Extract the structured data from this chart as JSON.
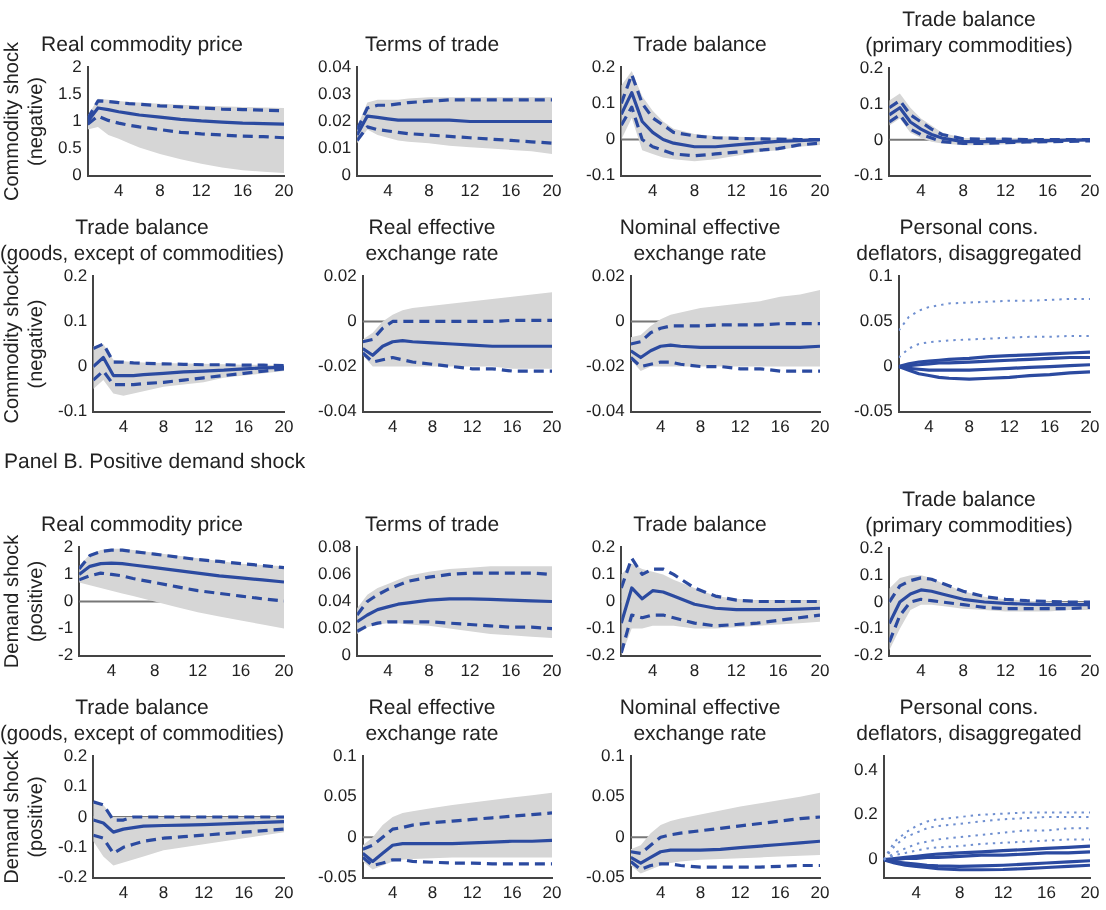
{
  "chart_data": [
    {
      "type": "line",
      "title": "Real commodity price",
      "ylabel": "Commodity shock\n(negative)",
      "x": [
        1,
        2,
        3,
        4,
        5,
        6,
        8,
        10,
        12,
        14,
        16,
        18,
        20
      ],
      "xlim": [
        1,
        20
      ],
      "xticks": [
        4,
        8,
        12,
        16,
        20
      ],
      "ylim": [
        0,
        2
      ],
      "yticks": [
        0,
        0.5,
        1,
        1.5,
        2
      ],
      "series": [
        {
          "color": "#2b4aa0",
          "values": [
            1.0,
            1.25,
            1.22,
            1.18,
            1.15,
            1.12,
            1.08,
            1.04,
            1.01,
            0.99,
            0.97,
            0.96,
            0.95
          ],
          "lower": [
            0.85,
            0.9,
            0.75,
            0.68,
            0.6,
            0.52,
            0.4,
            0.3,
            0.22,
            0.15,
            0.1,
            0.07,
            0.05
          ],
          "upper": [
            1.1,
            1.42,
            1.4,
            1.38,
            1.36,
            1.35,
            1.33,
            1.31,
            1.29,
            1.28,
            1.27,
            1.26,
            1.25
          ]
        },
        {
          "color": "#2b4aa0",
          "line_style": "dashed",
          "values": [
            1.05,
            1.38,
            1.37,
            1.35,
            1.33,
            1.32,
            1.29,
            1.27,
            1.25,
            1.23,
            1.22,
            1.21,
            1.2
          ]
        },
        {
          "color": "#2b4aa0",
          "line_style": "dashed",
          "values": [
            0.95,
            1.1,
            1.02,
            0.97,
            0.93,
            0.9,
            0.85,
            0.8,
            0.77,
            0.75,
            0.73,
            0.72,
            0.7
          ]
        }
      ]
    },
    {
      "type": "line",
      "title": "Terms of trade",
      "x": [
        1,
        2,
        3,
        4,
        5,
        6,
        8,
        10,
        12,
        14,
        16,
        18,
        20
      ],
      "xlim": [
        1,
        20
      ],
      "xticks": [
        4,
        8,
        12,
        16,
        20
      ],
      "ylim": [
        0,
        0.04
      ],
      "yticks": [
        0,
        0.01,
        0.02,
        0.03,
        0.04
      ],
      "series": [
        {
          "color": "#2b4aa0",
          "values": [
            0.015,
            0.022,
            0.0215,
            0.021,
            0.0205,
            0.0205,
            0.0205,
            0.0205,
            0.02,
            0.02,
            0.02,
            0.02,
            0.02
          ],
          "lower": [
            0.012,
            0.017,
            0.015,
            0.014,
            0.013,
            0.0125,
            0.012,
            0.011,
            0.0105,
            0.01,
            0.0095,
            0.009,
            0.008
          ],
          "upper": [
            0.018,
            0.027,
            0.028,
            0.028,
            0.028,
            0.0285,
            0.029,
            0.029,
            0.029,
            0.029,
            0.029,
            0.029,
            0.029
          ]
        },
        {
          "color": "#2b4aa0",
          "line_style": "dashed",
          "values": [
            0.017,
            0.025,
            0.026,
            0.026,
            0.0265,
            0.027,
            0.0275,
            0.028,
            0.028,
            0.028,
            0.028,
            0.028,
            0.028
          ]
        },
        {
          "color": "#2b4aa0",
          "line_style": "dashed",
          "values": [
            0.013,
            0.018,
            0.017,
            0.0165,
            0.016,
            0.0155,
            0.015,
            0.0145,
            0.014,
            0.0135,
            0.013,
            0.0125,
            0.012
          ]
        }
      ]
    },
    {
      "type": "line",
      "title": "Trade balance",
      "x": [
        1,
        2,
        3,
        4,
        5,
        6,
        8,
        10,
        12,
        14,
        16,
        18,
        20
      ],
      "xlim": [
        1,
        20
      ],
      "xticks": [
        4,
        8,
        12,
        16,
        20
      ],
      "ylim": [
        -0.1,
        0.2
      ],
      "yticks": [
        -0.1,
        0,
        0.1,
        0.2
      ],
      "ref_lines": [
        {
          "axis": "y",
          "value": 0
        }
      ],
      "series": [
        {
          "color": "#2b4aa0",
          "values": [
            0.07,
            0.13,
            0.05,
            0.02,
            0.0,
            -0.01,
            -0.02,
            -0.02,
            -0.015,
            -0.01,
            -0.005,
            -0.003,
            0
          ],
          "lower": [
            0.0,
            0.06,
            -0.03,
            -0.04,
            -0.05,
            -0.055,
            -0.06,
            -0.055,
            -0.045,
            -0.035,
            -0.03,
            -0.02,
            -0.015
          ],
          "upper": [
            0.15,
            0.19,
            0.12,
            0.08,
            0.05,
            0.03,
            0.015,
            0.01,
            0.008,
            0.006,
            0.005,
            0.004,
            0.003
          ]
        },
        {
          "color": "#2b4aa0",
          "line_style": "dashed",
          "values": [
            0.1,
            0.18,
            0.1,
            0.06,
            0.04,
            0.02,
            0.01,
            0.005,
            0.003,
            0.002,
            0.001,
            0,
            0
          ]
        },
        {
          "color": "#2b4aa0",
          "line_style": "dashed",
          "values": [
            0.04,
            0.09,
            0.0,
            -0.02,
            -0.03,
            -0.04,
            -0.045,
            -0.04,
            -0.035,
            -0.03,
            -0.025,
            -0.015,
            -0.01
          ]
        }
      ]
    },
    {
      "type": "line",
      "title": "Trade balance\n(primary commodities)",
      "x": [
        1,
        2,
        3,
        4,
        5,
        6,
        8,
        10,
        12,
        14,
        16,
        18,
        20
      ],
      "xlim": [
        1,
        20
      ],
      "xticks": [
        4,
        8,
        12,
        16,
        20
      ],
      "ylim": [
        -0.1,
        0.2
      ],
      "yticks": [
        -0.1,
        0,
        0.1,
        0.2
      ],
      "ref_lines": [
        {
          "axis": "y",
          "value": 0
        }
      ],
      "series": [
        {
          "color": "#2b4aa0",
          "values": [
            0.07,
            0.09,
            0.05,
            0.03,
            0.015,
            0.005,
            -0.005,
            -0.005,
            -0.004,
            -0.003,
            -0.002,
            -0.001,
            0
          ],
          "lower": [
            0.04,
            0.06,
            0.02,
            0.005,
            -0.005,
            -0.01,
            -0.015,
            -0.015,
            -0.012,
            -0.01,
            -0.008,
            -0.006,
            -0.005
          ],
          "upper": [
            0.11,
            0.13,
            0.09,
            0.06,
            0.04,
            0.02,
            0.005,
            0.004,
            0.003,
            0.003,
            0.002,
            0.002,
            0.002
          ]
        },
        {
          "color": "#2b4aa0",
          "line_style": "dashed",
          "values": [
            0.09,
            0.11,
            0.07,
            0.05,
            0.03,
            0.015,
            0.003,
            0.002,
            0.002,
            0.001,
            0.001,
            0.001,
            0.001
          ]
        },
        {
          "color": "#2b4aa0",
          "line_style": "dashed",
          "values": [
            0.05,
            0.07,
            0.03,
            0.015,
            0.005,
            -0.005,
            -0.01,
            -0.01,
            -0.008,
            -0.006,
            -0.005,
            -0.004,
            -0.003
          ]
        }
      ]
    },
    {
      "type": "line",
      "title": "Trade balance\n(goods, except of commodities)",
      "ylabel": "Commodity shock\n(negative)",
      "x": [
        1,
        2,
        3,
        4,
        5,
        6,
        8,
        10,
        12,
        14,
        16,
        18,
        20
      ],
      "xlim": [
        1,
        20
      ],
      "xticks": [
        4,
        8,
        12,
        16,
        20
      ],
      "ylim": [
        -0.1,
        0.2
      ],
      "yticks": [
        -0.1,
        0,
        0.1,
        0.2
      ],
      "ref_lines": [
        {
          "axis": "y",
          "value": 0
        }
      ],
      "series": [
        {
          "color": "#2b4aa0",
          "values": [
            0.0,
            0.02,
            -0.02,
            -0.02,
            -0.02,
            -0.018,
            -0.015,
            -0.012,
            -0.01,
            -0.008,
            -0.005,
            -0.003,
            -0.002
          ],
          "lower": [
            -0.05,
            -0.03,
            -0.06,
            -0.065,
            -0.06,
            -0.055,
            -0.045,
            -0.04,
            -0.035,
            -0.025,
            -0.02,
            -0.015,
            -0.01
          ],
          "upper": [
            0.045,
            0.05,
            0.015,
            0.012,
            0.01,
            0.009,
            0.008,
            0.007,
            0.006,
            0.005,
            0.004,
            0.004,
            0.003
          ]
        },
        {
          "color": "#2b4aa0",
          "line_style": "dashed",
          "values": [
            0.04,
            0.05,
            0.01,
            0.01,
            0.008,
            0.007,
            0.006,
            0.005,
            0.004,
            0.004,
            0.003,
            0.003,
            0.002
          ]
        },
        {
          "color": "#2b4aa0",
          "line_style": "dashed",
          "values": [
            -0.03,
            -0.01,
            -0.04,
            -0.04,
            -0.04,
            -0.038,
            -0.035,
            -0.03,
            -0.025,
            -0.02,
            -0.015,
            -0.01,
            -0.005
          ]
        }
      ]
    },
    {
      "type": "line",
      "title": "Real effective\nexchange rate",
      "x": [
        1,
        2,
        3,
        4,
        5,
        6,
        8,
        10,
        12,
        14,
        16,
        18,
        20
      ],
      "xlim": [
        1,
        20
      ],
      "xticks": [
        4,
        8,
        12,
        16,
        20
      ],
      "ylim": [
        -0.04,
        0.02
      ],
      "yticks": [
        -0.04,
        -0.02,
        0,
        0.02
      ],
      "ref_lines": [
        {
          "axis": "y",
          "value": 0
        }
      ],
      "series": [
        {
          "color": "#2b4aa0",
          "values": [
            -0.012,
            -0.015,
            -0.011,
            -0.009,
            -0.0085,
            -0.009,
            -0.0095,
            -0.01,
            -0.0105,
            -0.011,
            -0.011,
            -0.011,
            -0.011
          ],
          "lower": [
            -0.015,
            -0.02,
            -0.02,
            -0.02,
            -0.02,
            -0.02,
            -0.02,
            -0.02,
            -0.02,
            -0.02,
            -0.021,
            -0.021,
            -0.021
          ],
          "upper": [
            -0.008,
            -0.005,
            0.0,
            0.003,
            0.005,
            0.006,
            0.007,
            0.008,
            0.009,
            0.01,
            0.011,
            0.012,
            0.013
          ]
        },
        {
          "color": "#2b4aa0",
          "line_style": "dashed",
          "values": [
            -0.009,
            -0.008,
            -0.003,
            0.0,
            0.0,
            0.0,
            0.0,
            0.0,
            0.0,
            0.0,
            0.0005,
            0.0005,
            0.0005
          ]
        },
        {
          "color": "#2b4aa0",
          "line_style": "dashed",
          "values": [
            -0.014,
            -0.018,
            -0.017,
            -0.016,
            -0.017,
            -0.018,
            -0.019,
            -0.02,
            -0.021,
            -0.021,
            -0.022,
            -0.022,
            -0.022
          ]
        }
      ]
    },
    {
      "type": "line",
      "title": "Nominal effective\nexchange rate",
      "x": [
        1,
        2,
        3,
        4,
        5,
        6,
        8,
        10,
        12,
        14,
        16,
        18,
        20
      ],
      "xlim": [
        1,
        20
      ],
      "xticks": [
        4,
        8,
        12,
        16,
        20
      ],
      "ylim": [
        -0.04,
        0.02
      ],
      "yticks": [
        -0.04,
        -0.02,
        0,
        0.02
      ],
      "ref_lines": [
        {
          "axis": "y",
          "value": 0
        }
      ],
      "series": [
        {
          "color": "#2b4aa0",
          "values": [
            -0.013,
            -0.016,
            -0.013,
            -0.011,
            -0.0105,
            -0.011,
            -0.0115,
            -0.0115,
            -0.0115,
            -0.0115,
            -0.0115,
            -0.0115,
            -0.011
          ],
          "lower": [
            -0.017,
            -0.022,
            -0.02,
            -0.02,
            -0.02,
            -0.02,
            -0.02,
            -0.02,
            -0.02,
            -0.02,
            -0.02,
            -0.02,
            -0.02
          ],
          "upper": [
            -0.007,
            -0.006,
            -0.002,
            0.001,
            0.003,
            0.004,
            0.006,
            0.007,
            0.008,
            0.009,
            0.011,
            0.012,
            0.014
          ]
        },
        {
          "color": "#2b4aa0",
          "line_style": "dashed",
          "values": [
            -0.01,
            -0.009,
            -0.005,
            -0.003,
            -0.002,
            -0.002,
            -0.002,
            -0.0015,
            -0.0015,
            -0.0015,
            -0.001,
            -0.001,
            -0.001
          ]
        },
        {
          "color": "#2b4aa0",
          "line_style": "dashed",
          "values": [
            -0.016,
            -0.02,
            -0.019,
            -0.018,
            -0.018,
            -0.019,
            -0.02,
            -0.02,
            -0.021,
            -0.021,
            -0.022,
            -0.022,
            -0.022
          ]
        }
      ]
    },
    {
      "type": "line",
      "title": "Personal cons.\ndeflators, disaggregated",
      "x": [
        1,
        2,
        3,
        4,
        5,
        6,
        8,
        10,
        12,
        14,
        16,
        18,
        20
      ],
      "xlim": [
        1,
        20
      ],
      "xticks": [
        4,
        8,
        12,
        16,
        20
      ],
      "ylim": [
        -0.05,
        0.1
      ],
      "yticks": [
        -0.05,
        0,
        0.05,
        0.1
      ],
      "series": [
        {
          "color": "#6f8fd0",
          "line_style": "dotted",
          "values": [
            0.04,
            0.055,
            0.062,
            0.066,
            0.068,
            0.07,
            0.071,
            0.072,
            0.073,
            0.073,
            0.074,
            0.075,
            0.075
          ]
        },
        {
          "color": "#6f8fd0",
          "line_style": "dotted",
          "values": [
            0.01,
            0.02,
            0.025,
            0.027,
            0.028,
            0.029,
            0.03,
            0.031,
            0.032,
            0.033,
            0.033,
            0.034,
            0.034
          ]
        },
        {
          "color": "#2b4aa0",
          "values": [
            0,
            0.003,
            0.005,
            0.006,
            0.007,
            0.008,
            0.009,
            0.011,
            0.012,
            0.013,
            0.014,
            0.015,
            0.016
          ]
        },
        {
          "color": "#2b4aa0",
          "values": [
            0,
            0.001,
            0.002,
            0.003,
            0.004,
            0.004,
            0.005,
            0.006,
            0.007,
            0.008,
            0.009,
            0.01,
            0.01
          ]
        },
        {
          "color": "#2b4aa0",
          "values": [
            0,
            -0.002,
            -0.003,
            -0.004,
            -0.004,
            -0.004,
            -0.004,
            -0.003,
            -0.002,
            -0.001,
            0,
            0.001,
            0.002
          ]
        },
        {
          "color": "#2b4aa0",
          "values": [
            0,
            -0.004,
            -0.008,
            -0.01,
            -0.012,
            -0.013,
            -0.014,
            -0.013,
            -0.012,
            -0.01,
            -0.009,
            -0.007,
            -0.006
          ]
        }
      ]
    },
    {
      "type": "line",
      "title": "Real commodity price",
      "ylabel": "Demand shock\n(positive)",
      "annotations": [
        "Panel B. Positive demand shock"
      ],
      "x": [
        1,
        2,
        3,
        4,
        5,
        6,
        8,
        10,
        12,
        14,
        16,
        18,
        20
      ],
      "xlim": [
        1,
        20
      ],
      "xticks": [
        4,
        8,
        12,
        16,
        20
      ],
      "ylim": [
        -2,
        2
      ],
      "yticks": [
        -2,
        -1,
        0,
        1,
        2
      ],
      "ref_lines": [
        {
          "axis": "y",
          "value": 0
        }
      ],
      "series": [
        {
          "color": "#2b4aa0",
          "values": [
            1.0,
            1.3,
            1.4,
            1.42,
            1.4,
            1.35,
            1.25,
            1.15,
            1.05,
            0.95,
            0.87,
            0.8,
            0.72
          ],
          "lower": [
            0.7,
            0.6,
            0.5,
            0.4,
            0.3,
            0.2,
            0.0,
            -0.2,
            -0.4,
            -0.55,
            -0.7,
            -0.85,
            -1.0
          ],
          "upper": [
            1.3,
            1.75,
            1.9,
            1.95,
            1.95,
            1.9,
            1.8,
            1.7,
            1.6,
            1.5,
            1.4,
            1.35,
            1.3
          ]
        },
        {
          "color": "#2b4aa0",
          "line_style": "dashed",
          "values": [
            1.2,
            1.7,
            1.85,
            1.9,
            1.9,
            1.85,
            1.75,
            1.65,
            1.55,
            1.48,
            1.4,
            1.33,
            1.25
          ]
        },
        {
          "color": "#2b4aa0",
          "line_style": "dashed",
          "values": [
            0.8,
            0.95,
            1.05,
            1.0,
            0.95,
            0.85,
            0.7,
            0.55,
            0.4,
            0.3,
            0.2,
            0.1,
            0.02
          ]
        }
      ]
    },
    {
      "type": "line",
      "title": "Terms of trade",
      "x": [
        1,
        2,
        3,
        4,
        5,
        6,
        8,
        10,
        12,
        14,
        16,
        18,
        20
      ],
      "xlim": [
        1,
        20
      ],
      "xticks": [
        4,
        8,
        12,
        16,
        20
      ],
      "ylim": [
        0,
        0.08
      ],
      "yticks": [
        0,
        0.02,
        0.04,
        0.06,
        0.08
      ],
      "series": [
        {
          "color": "#2b4aa0",
          "values": [
            0.025,
            0.03,
            0.034,
            0.036,
            0.038,
            0.039,
            0.041,
            0.042,
            0.042,
            0.0415,
            0.041,
            0.0405,
            0.04
          ],
          "lower": [
            0.016,
            0.021,
            0.023,
            0.024,
            0.024,
            0.023,
            0.022,
            0.02,
            0.018,
            0.016,
            0.015,
            0.014,
            0.013
          ],
          "upper": [
            0.035,
            0.045,
            0.05,
            0.053,
            0.056,
            0.059,
            0.062,
            0.064,
            0.065,
            0.066,
            0.066,
            0.066,
            0.066
          ]
        },
        {
          "color": "#2b4aa0",
          "line_style": "dashed",
          "values": [
            0.03,
            0.04,
            0.045,
            0.049,
            0.052,
            0.055,
            0.058,
            0.06,
            0.061,
            0.061,
            0.061,
            0.061,
            0.06
          ]
        },
        {
          "color": "#2b4aa0",
          "line_style": "dashed",
          "values": [
            0.018,
            0.022,
            0.024,
            0.025,
            0.025,
            0.025,
            0.025,
            0.024,
            0.023,
            0.022,
            0.021,
            0.021,
            0.02
          ]
        }
      ]
    },
    {
      "type": "line",
      "title": "Trade balance",
      "x": [
        1,
        2,
        3,
        4,
        5,
        6,
        8,
        10,
        12,
        14,
        16,
        18,
        20
      ],
      "xlim": [
        1,
        20
      ],
      "xticks": [
        4,
        8,
        12,
        16,
        20
      ],
      "ylim": [
        -0.2,
        0.2
      ],
      "yticks": [
        -0.2,
        -0.1,
        0,
        0.1,
        0.2
      ],
      "ref_lines": [
        {
          "axis": "y",
          "value": 0
        }
      ],
      "series": [
        {
          "color": "#2b4aa0",
          "values": [
            -0.08,
            0.05,
            0.01,
            0.04,
            0.035,
            0.02,
            -0.01,
            -0.025,
            -0.03,
            -0.03,
            -0.03,
            -0.028,
            -0.025
          ],
          "lower": [
            -0.2,
            -0.1,
            -0.1,
            -0.09,
            -0.09,
            -0.09,
            -0.1,
            -0.1,
            -0.095,
            -0.09,
            -0.085,
            -0.08,
            -0.075
          ],
          "upper": [
            0.1,
            0.14,
            0.12,
            0.11,
            0.1,
            0.08,
            0.05,
            0.02,
            0.01,
            0.005,
            0.005,
            0.005,
            0.005
          ]
        },
        {
          "color": "#2b4aa0",
          "line_style": "dashed",
          "values": [
            0.05,
            0.16,
            0.1,
            0.12,
            0.12,
            0.1,
            0.05,
            0.02,
            0.005,
            0.0,
            0.0,
            0.0,
            0.0
          ]
        },
        {
          "color": "#2b4aa0",
          "line_style": "dashed",
          "values": [
            -0.19,
            -0.05,
            -0.06,
            -0.05,
            -0.05,
            -0.06,
            -0.08,
            -0.09,
            -0.085,
            -0.08,
            -0.07,
            -0.06,
            -0.05
          ]
        }
      ]
    },
    {
      "type": "line",
      "title": "Trade balance\n(primary commodities)",
      "x": [
        1,
        2,
        3,
        4,
        5,
        6,
        8,
        10,
        12,
        14,
        16,
        18,
        20
      ],
      "xlim": [
        1,
        20
      ],
      "xticks": [
        4,
        8,
        12,
        16,
        20
      ],
      "ylim": [
        -0.2,
        0.2
      ],
      "yticks": [
        -0.2,
        -0.1,
        0,
        0.1,
        0.2
      ],
      "ref_lines": [
        {
          "axis": "y",
          "value": 0
        }
      ],
      "series": [
        {
          "color": "#2b4aa0",
          "values": [
            -0.08,
            0.0,
            0.03,
            0.045,
            0.04,
            0.03,
            0.01,
            0.0,
            -0.005,
            -0.008,
            -0.01,
            -0.01,
            -0.01
          ],
          "lower": [
            -0.18,
            -0.1,
            -0.03,
            -0.01,
            -0.01,
            -0.015,
            -0.025,
            -0.03,
            -0.035,
            -0.035,
            -0.035,
            -0.03,
            -0.03
          ],
          "upper": [
            0.05,
            0.09,
            0.1,
            0.1,
            0.09,
            0.07,
            0.04,
            0.02,
            0.01,
            0.005,
            0.002,
            0.0,
            0.0
          ]
        },
        {
          "color": "#2b4aa0",
          "line_style": "dashed",
          "values": [
            0.0,
            0.06,
            0.08,
            0.09,
            0.085,
            0.07,
            0.04,
            0.02,
            0.01,
            0.005,
            0.002,
            0.0,
            0.0
          ]
        },
        {
          "color": "#2b4aa0",
          "line_style": "dashed",
          "values": [
            -0.15,
            -0.05,
            0.0,
            0.01,
            0.005,
            0.0,
            -0.01,
            -0.02,
            -0.025,
            -0.025,
            -0.025,
            -0.025,
            -0.02
          ]
        }
      ]
    },
    {
      "type": "line",
      "title": "Trade balance\n(goods, except of commodities)",
      "ylabel": "Demand shock\n(positive)",
      "x": [
        1,
        2,
        3,
        4,
        5,
        6,
        8,
        10,
        12,
        14,
        16,
        18,
        20
      ],
      "xlim": [
        1,
        20
      ],
      "xticks": [
        4,
        8,
        12,
        16,
        20
      ],
      "ylim": [
        -0.2,
        0.2
      ],
      "yticks": [
        -0.2,
        -0.1,
        0,
        0.1,
        0.2
      ],
      "ref_lines": [
        {
          "axis": "y",
          "value": 0
        }
      ],
      "series": [
        {
          "color": "#2b4aa0",
          "values": [
            -0.01,
            -0.02,
            -0.05,
            -0.04,
            -0.035,
            -0.03,
            -0.028,
            -0.027,
            -0.025,
            -0.023,
            -0.02,
            -0.018,
            -0.015
          ],
          "lower": [
            -0.08,
            -0.13,
            -0.16,
            -0.15,
            -0.14,
            -0.13,
            -0.11,
            -0.1,
            -0.09,
            -0.08,
            -0.07,
            -0.06,
            -0.05
          ],
          "upper": [
            0.05,
            0.04,
            0.0,
            0.0,
            0.0,
            0.0,
            0.0,
            0.0,
            0.0,
            0.0,
            0.0,
            0.0,
            0.0
          ]
        },
        {
          "color": "#2b4aa0",
          "line_style": "dashed",
          "values": [
            0.05,
            0.04,
            -0.01,
            -0.01,
            0.0,
            0.0,
            0.0,
            0.0,
            0.0,
            0.0,
            0.0,
            0.0,
            0.0
          ]
        },
        {
          "color": "#2b4aa0",
          "line_style": "dashed",
          "values": [
            -0.06,
            -0.07,
            -0.12,
            -0.1,
            -0.09,
            -0.08,
            -0.07,
            -0.065,
            -0.06,
            -0.055,
            -0.05,
            -0.045,
            -0.04
          ]
        }
      ]
    },
    {
      "type": "line",
      "title": "Real effective\nexchange rate",
      "x": [
        1,
        2,
        3,
        4,
        5,
        6,
        8,
        10,
        12,
        14,
        16,
        18,
        20
      ],
      "xlim": [
        1,
        20
      ],
      "xticks": [
        4,
        8,
        12,
        16,
        20
      ],
      "ylim": [
        -0.05,
        0.1
      ],
      "yticks": [
        -0.05,
        0,
        0.05,
        0.1
      ],
      "ref_lines": [
        {
          "axis": "y",
          "value": 0
        }
      ],
      "series": [
        {
          "color": "#2b4aa0",
          "values": [
            -0.02,
            -0.03,
            -0.02,
            -0.01,
            -0.008,
            -0.008,
            -0.008,
            -0.008,
            -0.007,
            -0.006,
            -0.005,
            -0.005,
            -0.004
          ],
          "lower": [
            -0.03,
            -0.04,
            -0.035,
            -0.03,
            -0.028,
            -0.027,
            -0.026,
            -0.025,
            -0.025,
            -0.025,
            -0.025,
            -0.025,
            -0.025
          ],
          "upper": [
            -0.01,
            0.0,
            0.015,
            0.025,
            0.03,
            0.032,
            0.036,
            0.04,
            0.043,
            0.046,
            0.049,
            0.052,
            0.055
          ]
        },
        {
          "color": "#2b4aa0",
          "line_style": "dashed",
          "values": [
            -0.015,
            -0.01,
            0.0,
            0.01,
            0.012,
            0.015,
            0.018,
            0.02,
            0.022,
            0.024,
            0.026,
            0.028,
            0.03
          ]
        },
        {
          "color": "#2b4aa0",
          "line_style": "dashed",
          "values": [
            -0.025,
            -0.035,
            -0.032,
            -0.028,
            -0.028,
            -0.03,
            -0.031,
            -0.032,
            -0.032,
            -0.033,
            -0.033,
            -0.033,
            -0.033
          ]
        }
      ]
    },
    {
      "type": "line",
      "title": "Nominal effective\nexchange rate",
      "x": [
        1,
        2,
        3,
        4,
        5,
        6,
        8,
        10,
        12,
        14,
        16,
        18,
        20
      ],
      "xlim": [
        1,
        20
      ],
      "xticks": [
        4,
        8,
        12,
        16,
        20
      ],
      "ylim": [
        -0.05,
        0.1
      ],
      "yticks": [
        -0.05,
        0,
        0.05,
        0.1
      ],
      "ref_lines": [
        {
          "axis": "y",
          "value": 0
        }
      ],
      "series": [
        {
          "color": "#2b4aa0",
          "values": [
            -0.025,
            -0.032,
            -0.025,
            -0.018,
            -0.016,
            -0.016,
            -0.016,
            -0.015,
            -0.013,
            -0.011,
            -0.009,
            -0.007,
            -0.005
          ],
          "lower": [
            -0.035,
            -0.045,
            -0.04,
            -0.035,
            -0.032,
            -0.03,
            -0.028,
            -0.027,
            -0.026,
            -0.025,
            -0.024,
            -0.023,
            -0.022
          ],
          "upper": [
            -0.015,
            -0.01,
            0.005,
            0.015,
            0.02,
            0.023,
            0.028,
            0.033,
            0.038,
            0.042,
            0.046,
            0.05,
            0.055
          ]
        },
        {
          "color": "#2b4aa0",
          "line_style": "dashed",
          "values": [
            -0.018,
            -0.02,
            -0.01,
            0.0,
            0.003,
            0.005,
            0.008,
            0.011,
            0.014,
            0.017,
            0.02,
            0.023,
            0.025
          ]
        },
        {
          "color": "#2b4aa0",
          "line_style": "dashed",
          "values": [
            -0.03,
            -0.04,
            -0.035,
            -0.033,
            -0.033,
            -0.035,
            -0.037,
            -0.037,
            -0.037,
            -0.037,
            -0.036,
            -0.035,
            -0.035
          ]
        }
      ]
    },
    {
      "type": "line",
      "title": "Personal cons.\ndeflators, disaggregated",
      "x": [
        1,
        2,
        3,
        4,
        5,
        6,
        8,
        10,
        12,
        14,
        16,
        18,
        20
      ],
      "xlim": [
        1,
        20
      ],
      "xticks": [
        4,
        8,
        12,
        16,
        20
      ],
      "ylim": [
        -0.08,
        0.46
      ],
      "yticks": [
        0,
        0.2,
        0.4
      ],
      "series": [
        {
          "color": "#6f8fd0",
          "line_style": "dotted",
          "values": [
            0,
            0.08,
            0.12,
            0.15,
            0.17,
            0.18,
            0.19,
            0.2,
            0.205,
            0.21,
            0.21,
            0.21,
            0.21
          ]
        },
        {
          "color": "#6f8fd0",
          "line_style": "dotted",
          "values": [
            0,
            0.06,
            0.1,
            0.12,
            0.14,
            0.15,
            0.16,
            0.17,
            0.18,
            0.185,
            0.19,
            0.19,
            0.19
          ]
        },
        {
          "color": "#6f8fd0",
          "line_style": "dotted",
          "values": [
            0,
            0.03,
            0.05,
            0.07,
            0.08,
            0.09,
            0.1,
            0.11,
            0.12,
            0.13,
            0.13,
            0.14,
            0.14
          ]
        },
        {
          "color": "#6f8fd0",
          "line_style": "dotted",
          "values": [
            0,
            0.02,
            0.03,
            0.04,
            0.05,
            0.055,
            0.06,
            0.07,
            0.075,
            0.08,
            0.085,
            0.09,
            0.09
          ]
        },
        {
          "color": "#2b4aa0",
          "values": [
            0,
            0.005,
            0.01,
            0.015,
            0.02,
            0.025,
            0.03,
            0.035,
            0.04,
            0.045,
            0.05,
            0.055,
            0.06
          ]
        },
        {
          "color": "#2b4aa0",
          "values": [
            0,
            0,
            0.005,
            0.005,
            0.01,
            0.01,
            0.015,
            0.02,
            0.02,
            0.025,
            0.03,
            0.03,
            0.035
          ]
        },
        {
          "color": "#2b4aa0",
          "values": [
            0,
            -0.01,
            -0.015,
            -0.02,
            -0.025,
            -0.028,
            -0.03,
            -0.028,
            -0.025,
            -0.02,
            -0.015,
            -0.01,
            -0.005
          ]
        },
        {
          "color": "#2b4aa0",
          "values": [
            0,
            -0.015,
            -0.025,
            -0.03,
            -0.035,
            -0.04,
            -0.045,
            -0.045,
            -0.044,
            -0.04,
            -0.035,
            -0.03,
            -0.025
          ]
        }
      ]
    }
  ]
}
